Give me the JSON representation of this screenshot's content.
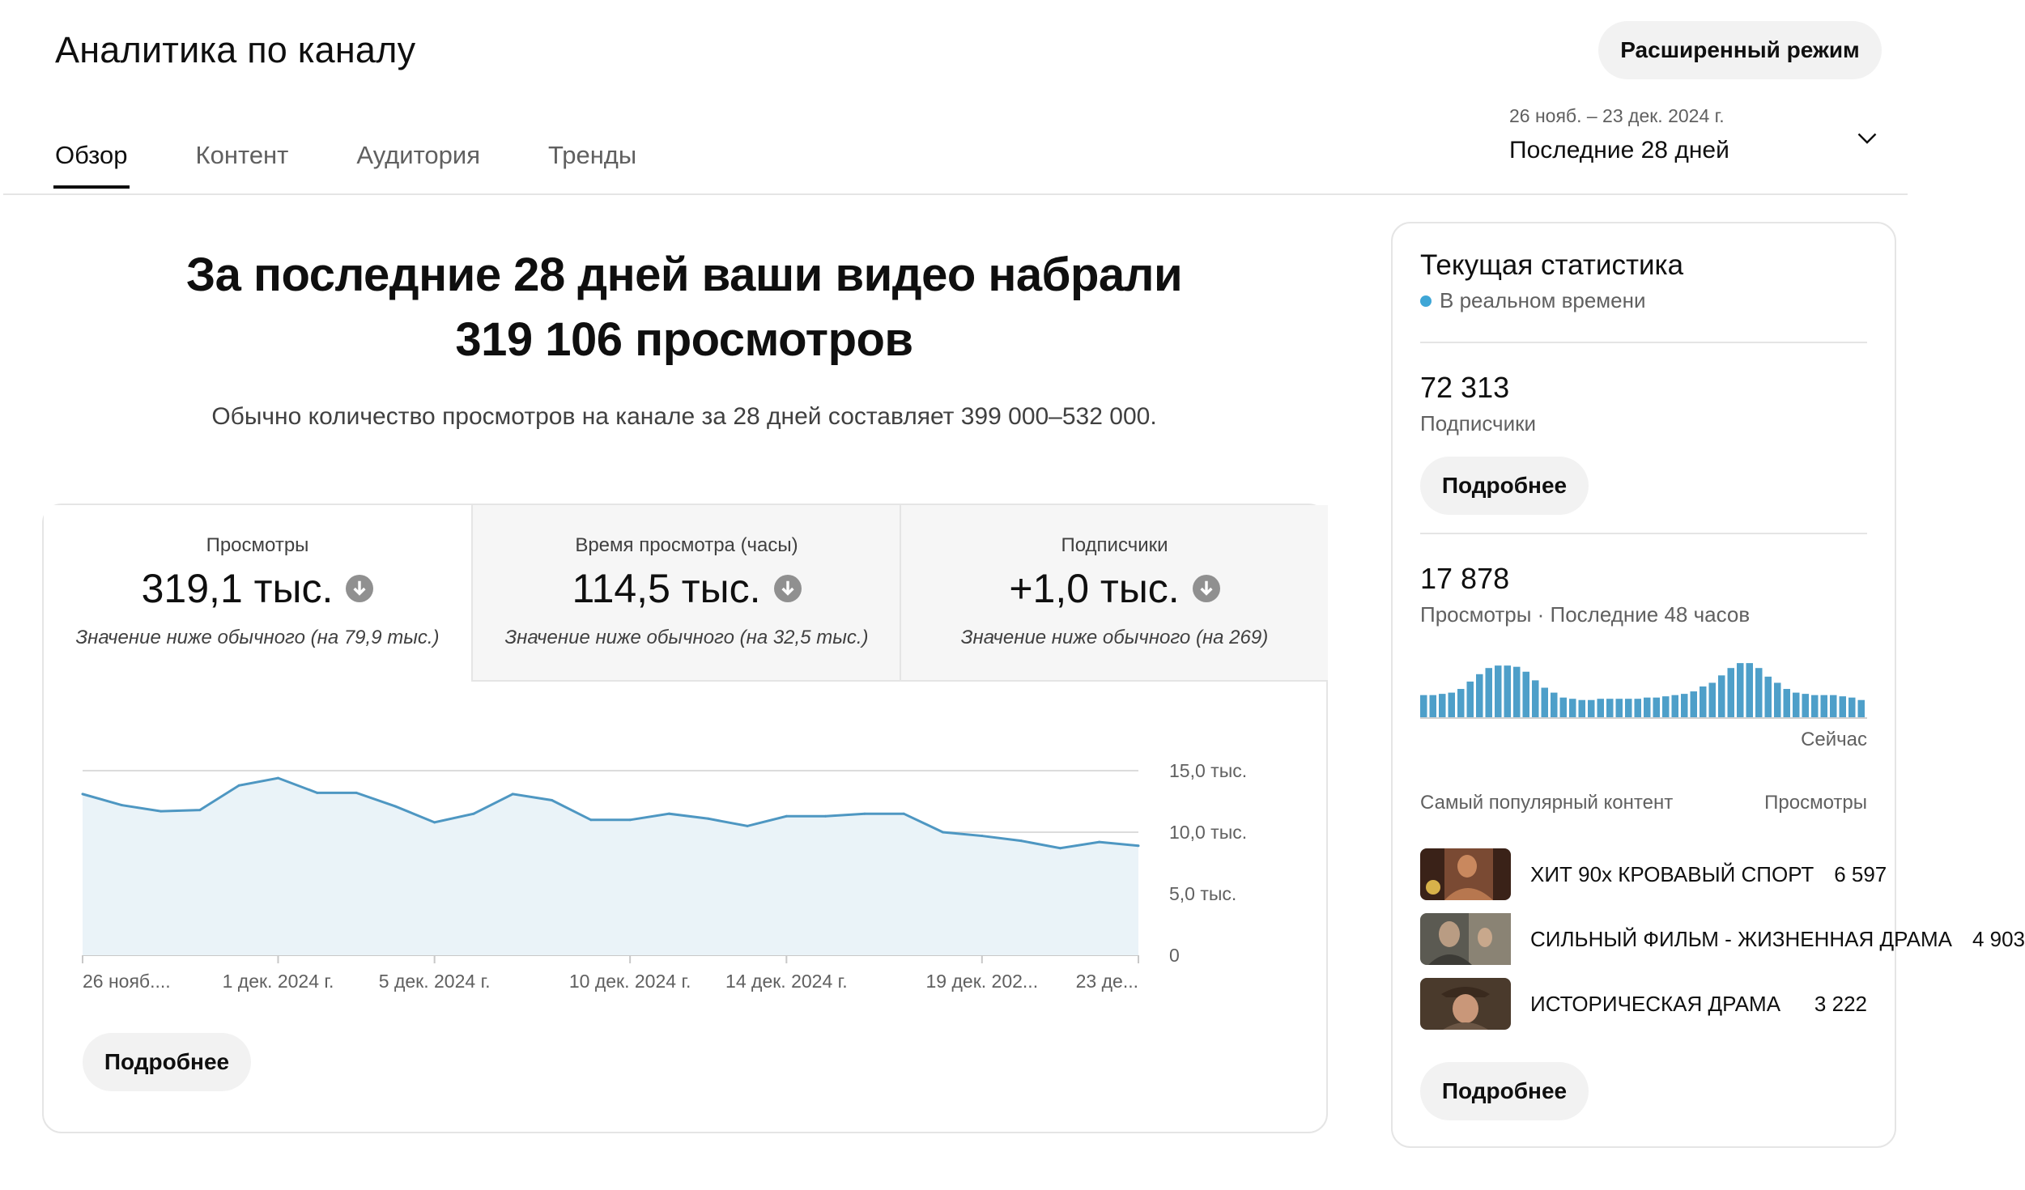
{
  "header": {
    "title": "Аналитика по каналу",
    "advanced_button": "Расширенный режим",
    "tabs": [
      "Обзор",
      "Контент",
      "Аудитория",
      "Тренды"
    ],
    "active_tab": "Обзор",
    "date_range": {
      "dates": "26 нояб. – 23 дек. 2024 г.",
      "label": "Последние 28 дней"
    }
  },
  "summary": {
    "headline_line1": "За последние 28 дней ваши видео набрали",
    "headline_line2": "319 106 просмотров",
    "subline": "Обычно количество просмотров на канале за 28 дней составляет 399 000–532 000."
  },
  "metrics": [
    {
      "label": "Просмотры",
      "value": "319,1 тыс.",
      "note": "Значение ниже обычного (на 79,9 тыс.)",
      "icon": "arrow-down-circle-icon"
    },
    {
      "label": "Время просмотра (часы)",
      "value": "114,5 тыс.",
      "note": "Значение ниже обычного (на 32,5 тыс.)",
      "icon": "arrow-down-circle-icon"
    },
    {
      "label": "Подписчики",
      "value": "+1,0 тыс.",
      "note": "Значение ниже обычного (на 269)",
      "icon": "arrow-down-circle-icon"
    }
  ],
  "main_details_button": "Подробнее",
  "chart_data": {
    "type": "area",
    "series": [
      {
        "values": [
          13.1,
          12.2,
          11.7,
          11.8,
          13.8,
          14.4,
          13.2,
          13.2,
          12.1,
          10.8,
          11.5,
          13.1,
          12.6,
          11.0,
          11.0,
          11.5,
          11.1,
          10.5,
          11.3,
          11.3,
          11.5,
          11.5,
          10.0,
          9.7,
          9.3,
          8.7,
          9.2,
          8.9
        ]
      }
    ],
    "x_tick_labels": [
      "26 нояб....",
      "1 дек. 2024 г.",
      "5 дек. 2024 г.",
      "10 дек. 2024 г.",
      "14 дек. 2024 г.",
      "19 дек. 202...",
      "23 де..."
    ],
    "x_tick_index": [
      0,
      5,
      9,
      14,
      18,
      23,
      27
    ],
    "y_tick_labels": [
      "15,0 тыс.",
      "10,0 тыс.",
      "5,0 тыс.",
      "0"
    ],
    "y_tick_values": [
      15,
      10,
      5,
      0
    ],
    "ylim": [
      0,
      15
    ],
    "grid": true,
    "colors": {
      "line": "#4e97c2",
      "fill": "#eaf3f8",
      "grid": "#dcdcdc"
    }
  },
  "realtime": {
    "title": "Текущая статистика",
    "status": "В реальном времени",
    "subscribers_value": "72 313",
    "subscribers_label": "Подписчики",
    "subscribers_button": "Подробнее",
    "views_value": "17 878",
    "views_label": "Просмотры · Последние 48 часов",
    "now_label": "Сейчас",
    "bar_values": [
      36,
      36,
      38,
      40,
      46,
      58,
      70,
      80,
      84,
      84,
      82,
      74,
      60,
      48,
      40,
      32,
      30,
      28,
      28,
      30,
      30,
      30,
      30,
      30,
      32,
      32,
      34,
      36,
      38,
      42,
      50,
      56,
      68,
      80,
      88,
      88,
      80,
      66,
      56,
      46,
      40,
      38,
      36,
      36,
      36,
      34,
      32,
      28
    ],
    "bar_color": "#4e9fc9",
    "top_content_header": "Самый популярный контент",
    "top_content_views_header": "Просмотры",
    "top_content": [
      {
        "title": "ХИТ 90х КРОВАВЫЙ СПОРТ",
        "views": "6 597"
      },
      {
        "title": "СИЛЬНЫЙ ФИЛЬМ - ЖИЗНЕННАЯ ДРАМА",
        "views": "4 903"
      },
      {
        "title": "ИСТОРИЧЕСКАЯ ДРАМА",
        "views": "3 222"
      }
    ],
    "details_button": "Подробнее"
  }
}
